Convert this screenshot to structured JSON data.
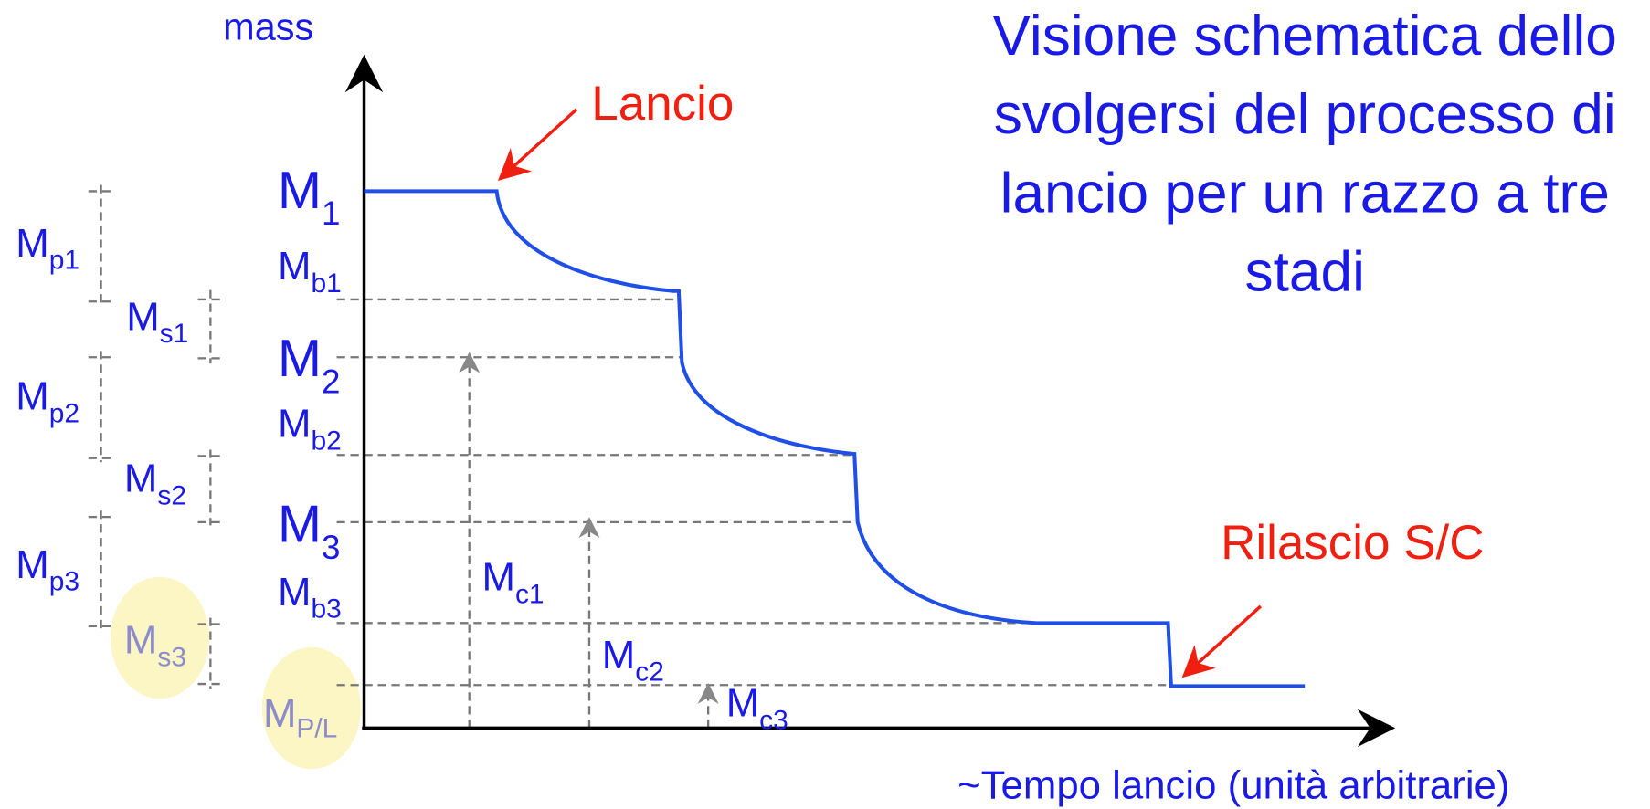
{
  "axis_label_y": "mass",
  "axis_label_x": "~Tempo lancio (unità arbitrarie)",
  "title": [
    "Visione schematica dello",
    "svolgersi del processo di",
    "lancio per un razzo a tre",
    "stadi"
  ],
  "annotations": {
    "launch": "Lancio",
    "release": "Rilascio S/C"
  },
  "mass_levels": [
    {
      "main": "M",
      "sub": "1"
    },
    {
      "main": "M",
      "sub": "b1"
    },
    {
      "main": "M",
      "sub": "2"
    },
    {
      "main": "M",
      "sub": "b2"
    },
    {
      "main": "M",
      "sub": "3"
    },
    {
      "main": "M",
      "sub": "b3"
    },
    {
      "main": "M",
      "sub": "P/L"
    }
  ],
  "brackets": [
    {
      "main": "M",
      "sub": "p1"
    },
    {
      "main": "M",
      "sub": "s1"
    },
    {
      "main": "M",
      "sub": "p2"
    },
    {
      "main": "M",
      "sub": "s2"
    },
    {
      "main": "M",
      "sub": "p3"
    },
    {
      "main": "M",
      "sub": "s3"
    }
  ],
  "cumulative": [
    {
      "main": "M",
      "sub": "c1"
    },
    {
      "main": "M",
      "sub": "c2"
    },
    {
      "main": "M",
      "sub": "c3"
    }
  ]
}
